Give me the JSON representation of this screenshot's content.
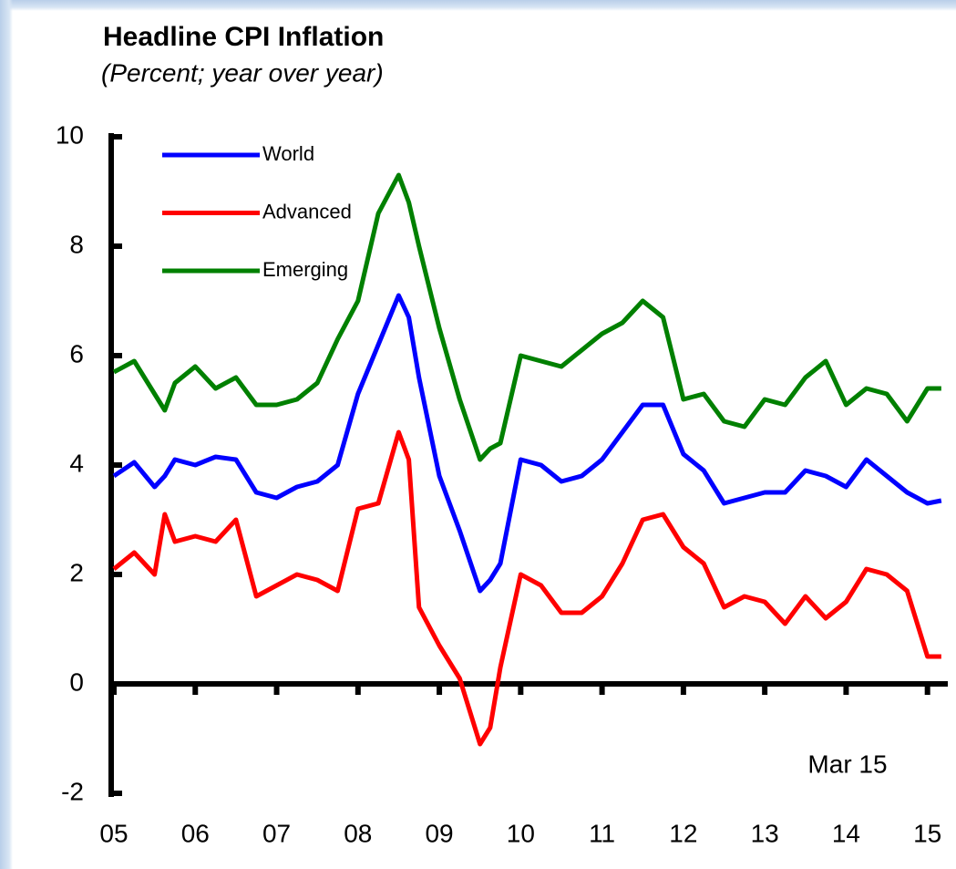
{
  "chart_data": {
    "type": "line",
    "title": "Headline CPI Inflation",
    "subtitle": "(Percent; year over year)",
    "annotation": "Mar 15",
    "x": [
      2005,
      2005.25,
      2005.5,
      2005.625,
      2005.75,
      2006,
      2006.25,
      2006.5,
      2006.75,
      2007,
      2007.25,
      2007.5,
      2007.75,
      2008,
      2008.25,
      2008.5,
      2008.625,
      2008.75,
      2009,
      2009.25,
      2009.5,
      2009.625,
      2009.75,
      2010,
      2010.25,
      2010.5,
      2010.75,
      2011,
      2011.25,
      2011.5,
      2011.75,
      2012,
      2012.25,
      2012.5,
      2012.75,
      2013,
      2013.25,
      2013.5,
      2013.75,
      2014,
      2014.25,
      2014.5,
      2014.75,
      2015,
      2015.17
    ],
    "series": [
      {
        "name": "World",
        "color": "#0000ff",
        "values": [
          3.8,
          4.05,
          3.6,
          3.8,
          4.1,
          4.0,
          4.15,
          4.1,
          3.5,
          3.4,
          3.6,
          3.7,
          4.0,
          5.3,
          6.2,
          7.1,
          6.7,
          5.6,
          3.8,
          2.8,
          1.7,
          1.9,
          2.2,
          4.1,
          4.0,
          3.7,
          3.8,
          4.1,
          4.6,
          5.1,
          5.1,
          4.2,
          3.9,
          3.3,
          3.4,
          3.5,
          3.5,
          3.9,
          3.8,
          3.6,
          4.1,
          3.8,
          3.5,
          3.3,
          3.35
        ]
      },
      {
        "name": "Advanced",
        "color": "#ff0000",
        "values": [
          2.1,
          2.4,
          2.0,
          3.1,
          2.6,
          2.7,
          2.6,
          3.0,
          1.6,
          1.8,
          2.0,
          1.9,
          1.7,
          3.2,
          3.3,
          4.6,
          4.1,
          1.4,
          0.7,
          0.1,
          -1.1,
          -0.8,
          0.3,
          2.0,
          1.8,
          1.3,
          1.3,
          1.6,
          2.2,
          3.0,
          3.1,
          2.5,
          2.2,
          1.4,
          1.6,
          1.5,
          1.1,
          1.6,
          1.2,
          1.5,
          2.1,
          2.0,
          1.7,
          0.5,
          0.5
        ]
      },
      {
        "name": "Emerging",
        "color": "#008000",
        "values": [
          5.7,
          5.9,
          5.3,
          5.0,
          5.5,
          5.8,
          5.4,
          5.6,
          5.1,
          5.1,
          5.2,
          5.5,
          6.3,
          7.0,
          8.6,
          9.3,
          8.8,
          8.0,
          6.5,
          5.2,
          4.1,
          4.3,
          4.4,
          6.0,
          5.9,
          5.8,
          6.1,
          6.4,
          6.6,
          7.0,
          6.7,
          5.2,
          5.3,
          4.8,
          4.7,
          5.2,
          5.1,
          5.6,
          5.9,
          5.1,
          5.4,
          5.3,
          4.8,
          5.4,
          5.4
        ]
      }
    ],
    "xlim": [
      2005,
      2015.25
    ],
    "xticks": [
      {
        "value": 2005,
        "label": "05"
      },
      {
        "value": 2006,
        "label": "06"
      },
      {
        "value": 2007,
        "label": "07"
      },
      {
        "value": 2008,
        "label": "08"
      },
      {
        "value": 2009,
        "label": "09"
      },
      {
        "value": 2010,
        "label": "10"
      },
      {
        "value": 2011,
        "label": "11"
      },
      {
        "value": 2012,
        "label": "12"
      },
      {
        "value": 2013,
        "label": "13"
      },
      {
        "value": 2014,
        "label": "14"
      },
      {
        "value": 2015,
        "label": "15"
      }
    ],
    "ylim": [
      -2,
      10
    ],
    "yticks": [
      -2,
      0,
      2,
      4,
      6,
      8,
      10
    ],
    "legend": "upper left",
    "grid": false
  }
}
